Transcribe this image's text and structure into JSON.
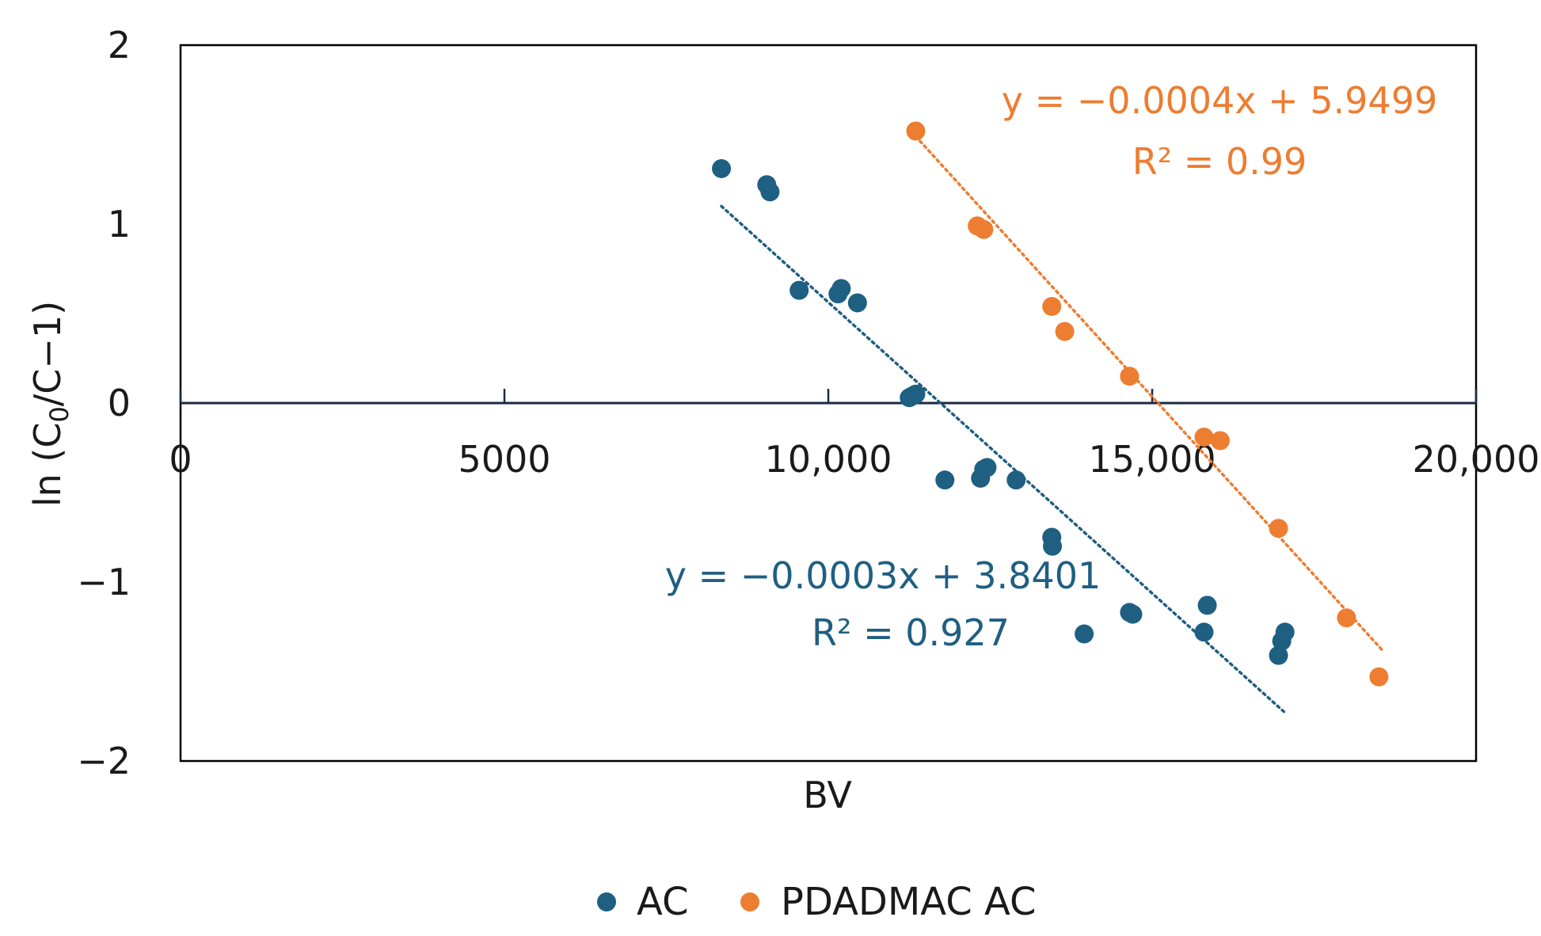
{
  "chart_data": {
    "type": "scatter",
    "title": "",
    "xlabel": "BV",
    "ylabel": "ln (C0/C−1)",
    "ylabel_parts": {
      "prefix": "ln (C",
      "sub": "0",
      "suffix": "/C−1)"
    },
    "xlim": [
      0,
      20000
    ],
    "ylim": [
      -2,
      2
    ],
    "x_ticks": [
      0,
      5000,
      10000,
      15000,
      20000
    ],
    "x_tick_labels": [
      "0",
      "5000",
      "10,000",
      "15,000",
      "20,000"
    ],
    "y_ticks": [
      2,
      1,
      0,
      -1,
      -2
    ],
    "y_tick_labels": [
      "2",
      "1",
      "0",
      "−1",
      "−2"
    ],
    "grid": false,
    "legend_position": "bottom-center",
    "series": [
      {
        "name": "AC",
        "color": "#1f5f82",
        "points": [
          [
            8350,
            1.31
          ],
          [
            9050,
            1.22
          ],
          [
            9100,
            1.18
          ],
          [
            9550,
            0.63
          ],
          [
            10150,
            0.61
          ],
          [
            10200,
            0.64
          ],
          [
            10450,
            0.56
          ],
          [
            11250,
            0.03
          ],
          [
            11300,
            0.04
          ],
          [
            11350,
            0.05
          ],
          [
            11800,
            -0.43
          ],
          [
            12350,
            -0.42
          ],
          [
            12400,
            -0.37
          ],
          [
            12450,
            -0.36
          ],
          [
            12900,
            -0.43
          ],
          [
            13450,
            -0.75
          ],
          [
            13460,
            -0.8
          ],
          [
            13950,
            -1.29
          ],
          [
            14650,
            -1.17
          ],
          [
            14700,
            -1.18
          ],
          [
            15800,
            -1.28
          ],
          [
            15850,
            -1.13
          ],
          [
            16950,
            -1.41
          ],
          [
            17000,
            -1.33
          ],
          [
            17050,
            -1.28
          ]
        ],
        "trendline": {
          "x_start": 8350,
          "y_start": 1.1,
          "x_end": 17050,
          "y_end": -1.73,
          "equation": "y = −0.0003x + 3.8401",
          "r2": "R² = 0.927"
        }
      },
      {
        "name": "PDADMAC AC",
        "color": "#ed7d31",
        "points": [
          [
            11350,
            1.52
          ],
          [
            12300,
            0.99
          ],
          [
            12400,
            0.97
          ],
          [
            13450,
            0.54
          ],
          [
            13650,
            0.4
          ],
          [
            14650,
            0.15
          ],
          [
            15800,
            -0.19
          ],
          [
            16050,
            -0.21
          ],
          [
            16950,
            -0.7
          ],
          [
            18000,
            -1.2
          ],
          [
            18500,
            -1.53
          ]
        ],
        "trendline": {
          "x_start": 11350,
          "y_start": 1.49,
          "x_end": 18550,
          "y_end": -1.38,
          "equation": "y = −0.0004x + 5.9499",
          "r2": "R² = 0.99"
        }
      }
    ]
  }
}
